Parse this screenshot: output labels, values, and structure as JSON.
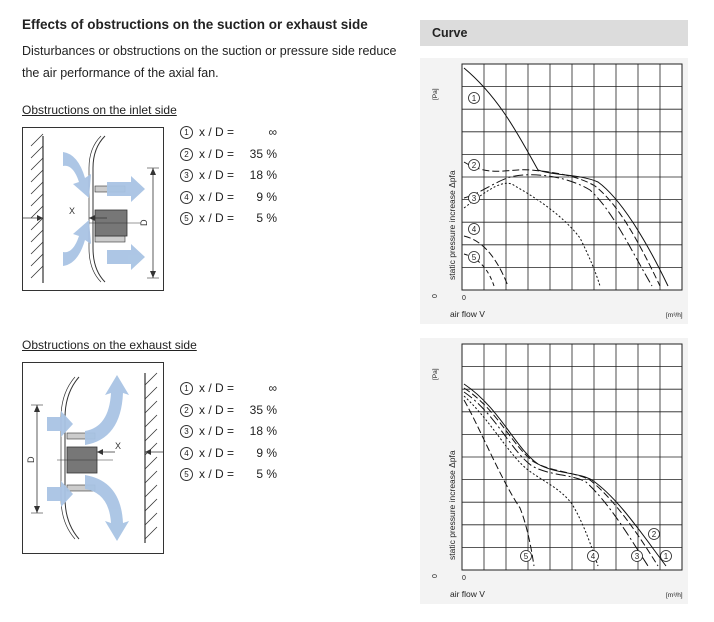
{
  "header": {
    "title": "Effects of obstructions on the suction or exhaust side",
    "description": "Disturbances or obstructions on the suction or pressure side reduce the air performance of the axial fan."
  },
  "sections": [
    {
      "heading": "Obstructions on the inlet side",
      "legend": [
        {
          "num": "1",
          "label": "x / D =",
          "value": "∞"
        },
        {
          "num": "2",
          "label": "x / D =",
          "value": "35 %"
        },
        {
          "num": "3",
          "label": "x / D =",
          "value": "18 %"
        },
        {
          "num": "4",
          "label": "x / D =",
          "value": "9 %"
        },
        {
          "num": "5",
          "label": "x / D =",
          "value": "5 %"
        }
      ],
      "diagram_labels": {
        "x": "X",
        "d": "D"
      }
    },
    {
      "heading": "Obstructions on the exhaust side",
      "legend": [
        {
          "num": "1",
          "label": "x / D =",
          "value": "∞"
        },
        {
          "num": "2",
          "label": "x / D =",
          "value": "35 %"
        },
        {
          "num": "3",
          "label": "x / D =",
          "value": "18 %"
        },
        {
          "num": "4",
          "label": "x / D =",
          "value": "9 %"
        },
        {
          "num": "5",
          "label": "x / D =",
          "value": "5 %"
        }
      ],
      "diagram_labels": {
        "x": "X",
        "d": "D"
      }
    }
  ],
  "curve_panel": {
    "heading": "Curve",
    "y_axis_label": "static pressure increase Δpfa",
    "y_unit": "[Pa]",
    "x_axis_label": "air flow V",
    "x_unit": "[m³/h]",
    "origin_x": "0",
    "origin_y": "0",
    "curve_markers": [
      "1",
      "2",
      "3",
      "4",
      "5"
    ]
  },
  "colors": {
    "arrow": "#a9c4e4",
    "hub": "#777777",
    "panel": "#f3f3f3",
    "header": "#dcdcdc"
  }
}
